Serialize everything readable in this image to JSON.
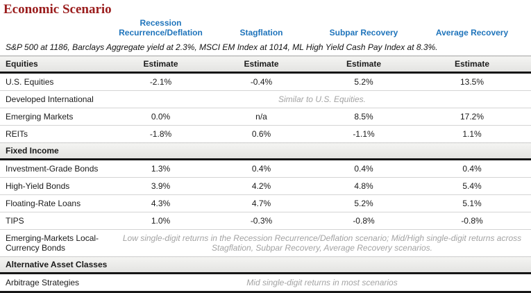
{
  "title": "Economic Scenario",
  "subtitle": "S&P 500 at 1186, Barclays Aggregate yield at 2.3%, MSCI EM Index at 1014, ML High Yield Cash Pay Index at 8.3%.",
  "estimate_label": "Estimate",
  "colors": {
    "title": "#9a1c1c",
    "scenario_header": "#1f74bb",
    "note_text": "#a3a3a3"
  },
  "scenarios": [
    "Recession Recurrence/Deflation",
    "Stagflation",
    "Subpar Recovery",
    "Average Recovery"
  ],
  "sections": [
    {
      "name": "Equities",
      "rows": [
        {
          "name": "U.S. Equities",
          "values": [
            "-2.1%",
            "-0.4%",
            "5.2%",
            "13.5%"
          ]
        },
        {
          "name": "Developed International",
          "span": "Similar to U.S. Equities."
        },
        {
          "name": "Emerging Markets",
          "values": [
            "0.0%",
            "n/a",
            "8.5%",
            "17.2%"
          ]
        },
        {
          "name": "REITs",
          "values": [
            "-1.8%",
            "0.6%",
            "-1.1%",
            "1.1%"
          ]
        }
      ]
    },
    {
      "name": "Fixed Income",
      "rows": [
        {
          "name": "Investment-Grade Bonds",
          "values": [
            "1.3%",
            "0.4%",
            "0.4%",
            "0.4%"
          ]
        },
        {
          "name": "High-Yield Bonds",
          "values": [
            "3.9%",
            "4.2%",
            "4.8%",
            "5.4%"
          ]
        },
        {
          "name": "Floating-Rate Loans",
          "values": [
            "4.3%",
            "4.7%",
            "5.2%",
            "5.1%"
          ]
        },
        {
          "name": "TIPS",
          "values": [
            "1.0%",
            "-0.3%",
            "-0.8%",
            "-0.8%"
          ]
        },
        {
          "name": "Emerging-Markets Local-Currency Bonds",
          "span": "Low single-digit returns in the Recession Recurrence/Deflation scenario; Mid/High single-digit returns across Stagflation, Subpar Recovery, Average Recovery scenarios."
        }
      ]
    },
    {
      "name": "Alternative Asset Classes",
      "rows": [
        {
          "name": "Arbitrage Strategies",
          "span": "Mid single-digit returns in most scenarios"
        }
      ]
    }
  ]
}
